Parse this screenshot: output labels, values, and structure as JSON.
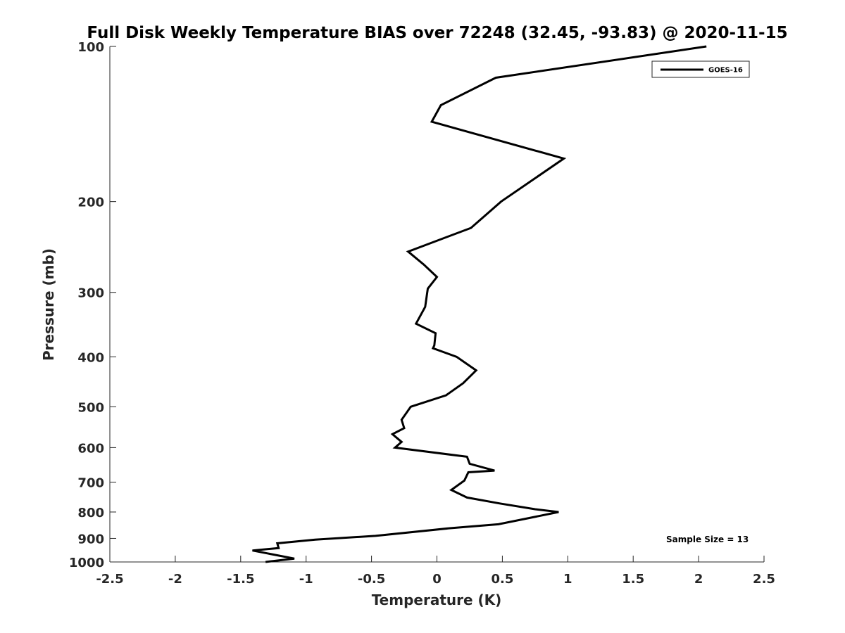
{
  "chart_data": {
    "type": "line",
    "title": "Full Disk Weekly Temperature BIAS over 72248 (32.45, -93.83) @ 2020-11-15",
    "xlabel": "Temperature (K)",
    "ylabel": "Pressure (mb)",
    "xlim": [
      -2.5,
      2.5
    ],
    "ylim": [
      1000,
      100
    ],
    "yscale": "log",
    "y_reversed": true,
    "x_ticks": [
      -2.5,
      -2,
      -1.5,
      -1,
      -0.5,
      0,
      0.5,
      1,
      1.5,
      2,
      2.5
    ],
    "x_tick_labels": [
      "-2.5",
      "-2",
      "-1.5",
      "-1",
      "-0.5",
      "0",
      "0.5",
      "1",
      "1.5",
      "2",
      "2.5"
    ],
    "y_ticks": [
      100,
      200,
      300,
      400,
      500,
      600,
      700,
      800,
      900,
      1000
    ],
    "y_tick_labels": [
      "100",
      "200",
      "300",
      "400",
      "500",
      "600",
      "700",
      "800",
      "900",
      "1000"
    ],
    "grid": false,
    "legend": {
      "position": "top-right",
      "entries": [
        "GOES-16"
      ]
    },
    "annotation": "Sample Size = 13",
    "line_color": "#000000",
    "series": [
      {
        "name": "GOES-16",
        "x": [
          2.06,
          0.45,
          0.03,
          -0.04,
          0.97,
          0.49,
          0.26,
          -0.22,
          -0.1,
          0.0,
          -0.07,
          -0.09,
          -0.16,
          -0.01,
          -0.02,
          -0.03,
          0.15,
          0.3,
          0.2,
          0.07,
          -0.2,
          -0.27,
          -0.25,
          -0.34,
          -0.27,
          -0.32,
          0.23,
          0.25,
          0.44,
          0.24,
          0.21,
          0.11,
          0.23,
          0.48,
          0.75,
          0.93,
          0.47,
          0.1,
          -0.47,
          -0.93,
          -1.22,
          -1.21,
          -1.41,
          -1.09,
          -1.31
        ],
        "y": [
          100,
          115,
          130,
          140,
          165,
          200,
          225,
          250,
          265,
          280,
          295,
          320,
          345,
          360,
          380,
          385,
          400,
          425,
          450,
          475,
          500,
          530,
          550,
          565,
          585,
          600,
          625,
          645,
          665,
          670,
          695,
          725,
          750,
          770,
          790,
          800,
          845,
          860,
          890,
          905,
          920,
          940,
          950,
          985,
          1000
        ]
      }
    ]
  }
}
